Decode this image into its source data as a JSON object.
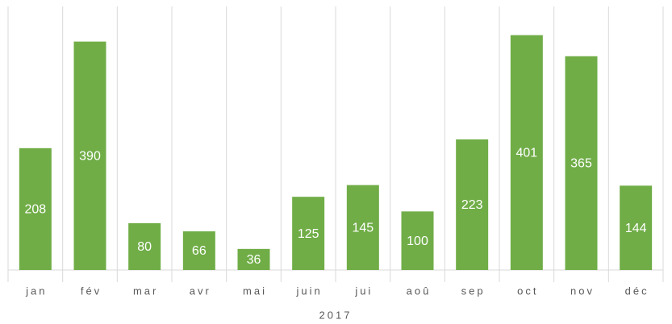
{
  "chart_data": {
    "type": "bar",
    "categories": [
      "jan",
      "fév",
      "mar",
      "avr",
      "mai",
      "juin",
      "jui",
      "aoû",
      "sep",
      "oct",
      "nov",
      "déc"
    ],
    "values": [
      208,
      390,
      80,
      66,
      36,
      125,
      145,
      100,
      223,
      401,
      365,
      144
    ],
    "color": "#70ad47",
    "group_label": "2017",
    "ylim": [
      0,
      450
    ]
  }
}
